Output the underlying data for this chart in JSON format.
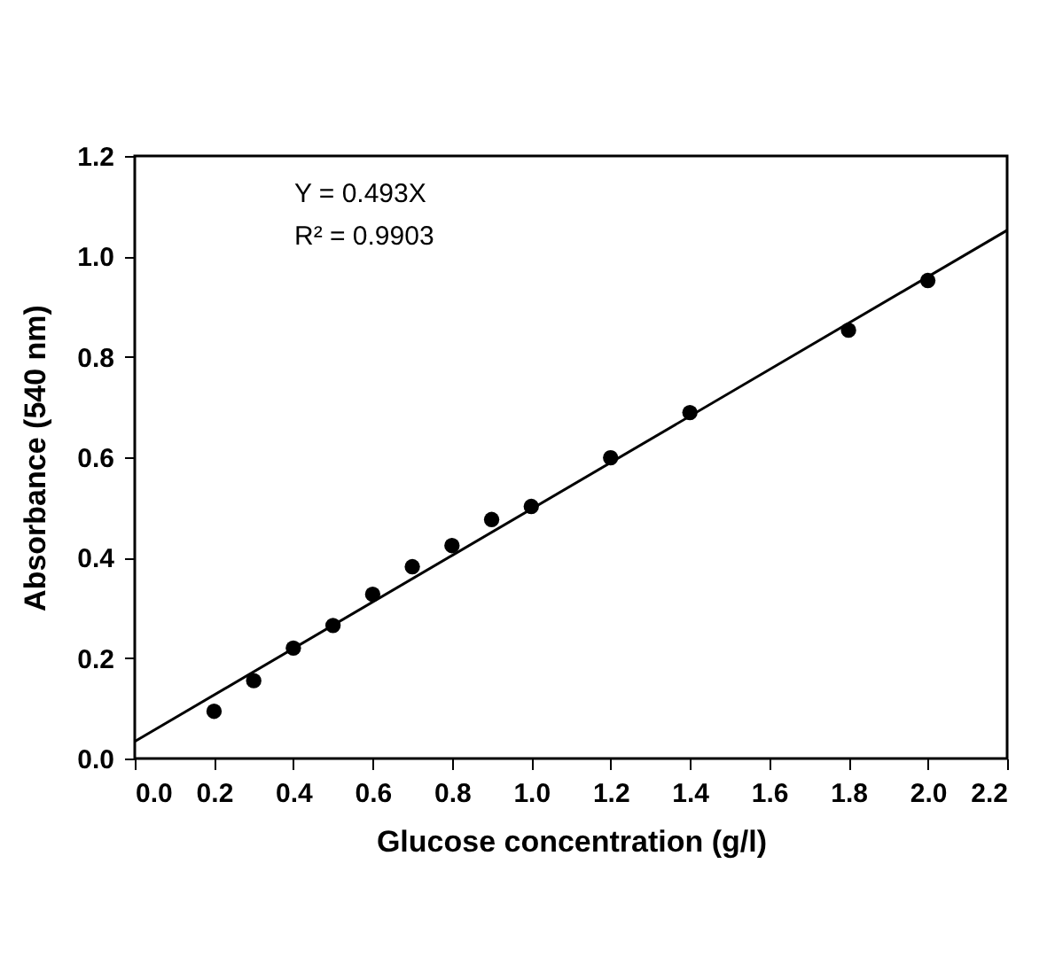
{
  "chart_data": {
    "type": "scatter",
    "xlabel": "Glucose concentration (g/l)",
    "ylabel": "Absorbance (540 nm)",
    "annotations": [
      "Y = 0.493X",
      "R² = 0.9903"
    ],
    "series": [
      {
        "type": "scatter",
        "color": "#000000",
        "marker": "circle",
        "x": [
          0.2,
          0.3,
          0.4,
          0.5,
          0.6,
          0.7,
          0.8,
          0.9,
          1.0,
          1.2,
          1.4,
          1.8,
          2.0
        ],
        "values": [
          0.094,
          0.155,
          0.22,
          0.265,
          0.327,
          0.382,
          0.424,
          0.476,
          0.502,
          0.599,
          0.689,
          0.853,
          0.952
        ]
      },
      {
        "type": "line",
        "color": "#000000",
        "line_style": "solid",
        "x": [
          0,
          2.2
        ],
        "values": [
          0.034,
          1.052
        ]
      }
    ],
    "xlim": [
      0,
      2.2
    ],
    "xticks": [
      {
        "value": 0,
        "label": "0.0"
      },
      {
        "value": 0.2,
        "label": "0.2"
      },
      {
        "value": 0.4,
        "label": "0.4"
      },
      {
        "value": 0.6,
        "label": "0.6"
      },
      {
        "value": 0.8,
        "label": "0.8"
      },
      {
        "value": 1,
        "label": "1.0"
      },
      {
        "value": 1.2,
        "label": "1.2"
      },
      {
        "value": 1.4,
        "label": "1.4"
      },
      {
        "value": 1.6,
        "label": "1.6"
      },
      {
        "value": 1.8,
        "label": "1.8"
      },
      {
        "value": 2,
        "label": "2.0"
      },
      {
        "value": 2.2,
        "label": "2.2"
      }
    ],
    "ylim": [
      0,
      1.2
    ],
    "yticks": [
      {
        "value": 0,
        "label": "0.0"
      },
      {
        "value": 0.2,
        "label": "0.2"
      },
      {
        "value": 0.4,
        "label": "0.4"
      },
      {
        "value": 0.6,
        "label": "0.6"
      },
      {
        "value": 0.8,
        "label": "0.8"
      },
      {
        "value": 1,
        "label": "1.0"
      },
      {
        "value": 1.2,
        "label": "1.2"
      }
    ],
    "grid": false
  }
}
